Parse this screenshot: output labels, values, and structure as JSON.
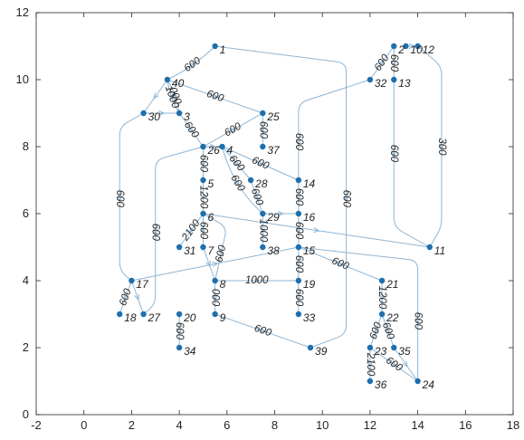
{
  "chart_data": {
    "type": "scatter",
    "subtype": "directed-graph",
    "title": "",
    "xlabel": "",
    "ylabel": "",
    "xlim": [
      -2,
      18
    ],
    "ylim": [
      0,
      12
    ],
    "xticks": [
      "-2",
      "0",
      "2",
      "4",
      "6",
      "8",
      "10",
      "12",
      "14",
      "16",
      "18"
    ],
    "yticks": [
      "0",
      "2",
      "4",
      "6",
      "8",
      "10",
      "12"
    ],
    "grid": false,
    "box": true,
    "colors": {
      "node": "#1f6fad",
      "edge": "#8fb5d3",
      "axis": "#262626",
      "text": "#262626"
    },
    "nodes": [
      {
        "id": "1",
        "x": 5.5,
        "y": 11.0
      },
      {
        "id": "2",
        "x": 13.0,
        "y": 11.0
      },
      {
        "id": "3",
        "x": 4.0,
        "y": 9.0
      },
      {
        "id": "4",
        "x": 5.8,
        "y": 8.0
      },
      {
        "id": "5",
        "x": 5.0,
        "y": 7.0
      },
      {
        "id": "6",
        "x": 5.0,
        "y": 6.0
      },
      {
        "id": "7",
        "x": 5.0,
        "y": 5.0
      },
      {
        "id": "8",
        "x": 5.5,
        "y": 4.0
      },
      {
        "id": "9",
        "x": 5.5,
        "y": 3.0
      },
      {
        "id": "10",
        "x": 13.5,
        "y": 11.0
      },
      {
        "id": "11",
        "x": 14.5,
        "y": 5.0
      },
      {
        "id": "12",
        "x": 14.0,
        "y": 11.0
      },
      {
        "id": "13",
        "x": 13.0,
        "y": 10.0
      },
      {
        "id": "14",
        "x": 9.0,
        "y": 7.0
      },
      {
        "id": "15",
        "x": 9.0,
        "y": 5.0
      },
      {
        "id": "16",
        "x": 9.0,
        "y": 6.0
      },
      {
        "id": "17",
        "x": 2.0,
        "y": 4.0
      },
      {
        "id": "18",
        "x": 1.5,
        "y": 3.0
      },
      {
        "id": "19",
        "x": 9.0,
        "y": 4.0
      },
      {
        "id": "20",
        "x": 4.0,
        "y": 3.0
      },
      {
        "id": "21",
        "x": 12.5,
        "y": 4.0
      },
      {
        "id": "22",
        "x": 12.5,
        "y": 3.0
      },
      {
        "id": "23",
        "x": 12.0,
        "y": 2.0
      },
      {
        "id": "24",
        "x": 14.0,
        "y": 1.0
      },
      {
        "id": "25",
        "x": 7.5,
        "y": 9.0
      },
      {
        "id": "26",
        "x": 5.0,
        "y": 8.0
      },
      {
        "id": "27",
        "x": 2.5,
        "y": 3.0
      },
      {
        "id": "28",
        "x": 7.0,
        "y": 7.0
      },
      {
        "id": "29",
        "x": 7.5,
        "y": 6.0
      },
      {
        "id": "30",
        "x": 2.5,
        "y": 9.0
      },
      {
        "id": "31",
        "x": 4.0,
        "y": 5.0
      },
      {
        "id": "32",
        "x": 12.0,
        "y": 10.0
      },
      {
        "id": "33",
        "x": 9.0,
        "y": 3.0
      },
      {
        "id": "34",
        "x": 4.0,
        "y": 2.0
      },
      {
        "id": "35",
        "x": 13.0,
        "y": 2.0
      },
      {
        "id": "36",
        "x": 12.0,
        "y": 1.0
      },
      {
        "id": "37",
        "x": 7.5,
        "y": 8.0
      },
      {
        "id": "38",
        "x": 7.5,
        "y": 5.0
      },
      {
        "id": "39",
        "x": 9.5,
        "y": 2.0
      },
      {
        "id": "40",
        "x": 3.5,
        "y": 10.0
      }
    ],
    "edges": [
      {
        "from": "40",
        "to": "1",
        "label": "600",
        "bend": 0.08
      },
      {
        "from": "1",
        "to": "39",
        "label": "600",
        "via": [
          [
            11.0,
            10.5
          ],
          [
            11.0,
            2.4
          ]
        ]
      },
      {
        "from": "40",
        "to": "3",
        "label": "1000",
        "bend": 0.1
      },
      {
        "from": "40",
        "to": "30",
        "label": "",
        "bend": 0.0
      },
      {
        "from": "3",
        "to": "40",
        "label": "000",
        "bend": 0.1
      },
      {
        "from": "40",
        "to": "25",
        "label": "600",
        "bend": 0.0
      },
      {
        "from": "3",
        "to": "26",
        "label": "600",
        "bend": 0.0
      },
      {
        "from": "26",
        "to": "25",
        "label": "600",
        "bend": 0.0
      },
      {
        "from": "25",
        "to": "37",
        "label": "600",
        "bend": 0.0
      },
      {
        "from": "30",
        "to": "3",
        "label": "",
        "bend": 0.0
      },
      {
        "from": "30",
        "to": "17",
        "label": "600",
        "via": [
          [
            1.5,
            8.6
          ],
          [
            1.5,
            4.3
          ]
        ]
      },
      {
        "from": "26",
        "to": "4",
        "label": "",
        "bend": 0.0
      },
      {
        "from": "26",
        "to": "5",
        "label": "600",
        "bend": 0.0
      },
      {
        "from": "4",
        "to": "14",
        "label": "600",
        "bend": 0.0
      },
      {
        "from": "4",
        "to": "28",
        "label": "600",
        "bend": 0.0
      },
      {
        "from": "4",
        "to": "29",
        "label": "600",
        "bend": 0.15
      },
      {
        "from": "26",
        "to": "27",
        "label": "600",
        "via": [
          [
            3.0,
            7.6
          ],
          [
            3.0,
            3.3
          ]
        ]
      },
      {
        "from": "5",
        "to": "6",
        "label": "1200",
        "bend": 0.0
      },
      {
        "from": "6",
        "to": "31",
        "label": "2100",
        "bend": 0.0
      },
      {
        "from": "6",
        "to": "7",
        "label": "600",
        "bend": 0.0
      },
      {
        "from": "6",
        "to": "8",
        "label": "600",
        "via": [
          [
            6.0,
            5.6
          ]
        ]
      },
      {
        "from": "6",
        "to": "11",
        "label": "",
        "bend": 0.0
      },
      {
        "from": "7",
        "to": "8",
        "label": "",
        "bend": 0.0
      },
      {
        "from": "8",
        "to": "9",
        "label": "000",
        "bend": 0.0
      },
      {
        "from": "8",
        "to": "19",
        "label": "1000",
        "bend": 0.0
      },
      {
        "from": "9",
        "to": "39",
        "label": "600",
        "bend": 0.0
      },
      {
        "from": "20",
        "to": "34",
        "label": "600",
        "bend": 0.0
      },
      {
        "from": "17",
        "to": "18",
        "label": "600",
        "bend": 0.0
      },
      {
        "from": "17",
        "to": "27",
        "label": "",
        "bend": 0.0
      },
      {
        "from": "17",
        "to": "15",
        "label": "",
        "bend": 0.0
      },
      {
        "from": "28",
        "to": "29",
        "label": "600",
        "bend": 0.0
      },
      {
        "from": "29",
        "to": "38",
        "label": "1000",
        "bend": 0.0
      },
      {
        "from": "29",
        "to": "16",
        "label": "",
        "bend": 0.0
      },
      {
        "from": "32",
        "to": "14",
        "label": "600",
        "via": [
          [
            9.0,
            9.3
          ]
        ]
      },
      {
        "from": "14",
        "to": "16",
        "label": "600",
        "bend": 0.0
      },
      {
        "from": "16",
        "to": "15",
        "label": "600",
        "bend": 0.0
      },
      {
        "from": "15",
        "to": "19",
        "label": "600",
        "bend": 0.0
      },
      {
        "from": "19",
        "to": "33",
        "label": "600",
        "bend": 0.0
      },
      {
        "from": "15",
        "to": "21",
        "label": "600",
        "bend": 0.0
      },
      {
        "from": "15",
        "to": "24",
        "label": "600",
        "via": [
          [
            14.0,
            4.6
          ]
        ]
      },
      {
        "from": "21",
        "to": "22",
        "label": "1200",
        "bend": 0.0
      },
      {
        "from": "22",
        "to": "23",
        "label": "600",
        "bend": 0.0
      },
      {
        "from": "22",
        "to": "35",
        "label": "600",
        "bend": 0.0
      },
      {
        "from": "23",
        "to": "36",
        "label": "2100",
        "bend": 0.0
      },
      {
        "from": "35",
        "to": "24",
        "label": "",
        "bend": 0.0
      },
      {
        "from": "23",
        "to": "24",
        "label": "600",
        "bend": 0.0
      },
      {
        "from": "32",
        "to": "2",
        "label": "600",
        "bend": 0.0
      },
      {
        "from": "2",
        "to": "13",
        "label": "600",
        "bend": 0.0
      },
      {
        "from": "10",
        "to": "12",
        "label": "",
        "bend": 0.0
      },
      {
        "from": "13",
        "to": "11",
        "label": "600",
        "via": [
          [
            13.0,
            5.6
          ]
        ]
      },
      {
        "from": "12",
        "to": "11",
        "label": "300",
        "via": [
          [
            15.0,
            10.4
          ],
          [
            15.0,
            5.6
          ]
        ]
      }
    ]
  }
}
